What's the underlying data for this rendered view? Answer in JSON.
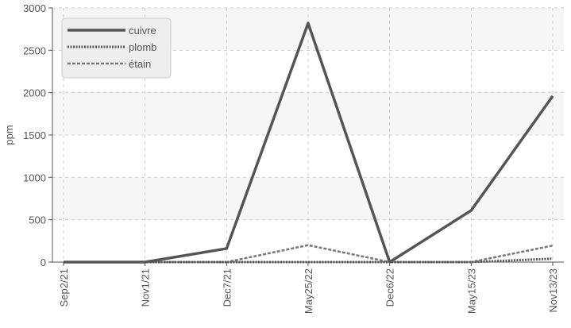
{
  "chart_data": {
    "type": "line",
    "categories": [
      "Sep2/21",
      "Nov1/21",
      "Dec7/21",
      "May25/22",
      "Dec6/22",
      "May15/23",
      "Nov13/23"
    ],
    "ylabel": "ppm",
    "ylim": [
      0,
      3000
    ],
    "yticks": [
      "0",
      "500",
      "1000",
      "1500",
      "2000",
      "2500",
      "3000"
    ],
    "grid": true,
    "legend_position": "top-left",
    "series": [
      {
        "name": "cuivre",
        "values": [
          0,
          0,
          160,
          2820,
          0,
          610,
          1960
        ],
        "color": "#555555",
        "style": "solid"
      },
      {
        "name": "plomb",
        "values": [
          0,
          0,
          0,
          0,
          0,
          0,
          40
        ],
        "color": "#555555",
        "style": "dotted"
      },
      {
        "name": "étain",
        "values": [
          0,
          0,
          0,
          200,
          0,
          0,
          195
        ],
        "color": "#777777",
        "style": "dashed"
      }
    ]
  }
}
